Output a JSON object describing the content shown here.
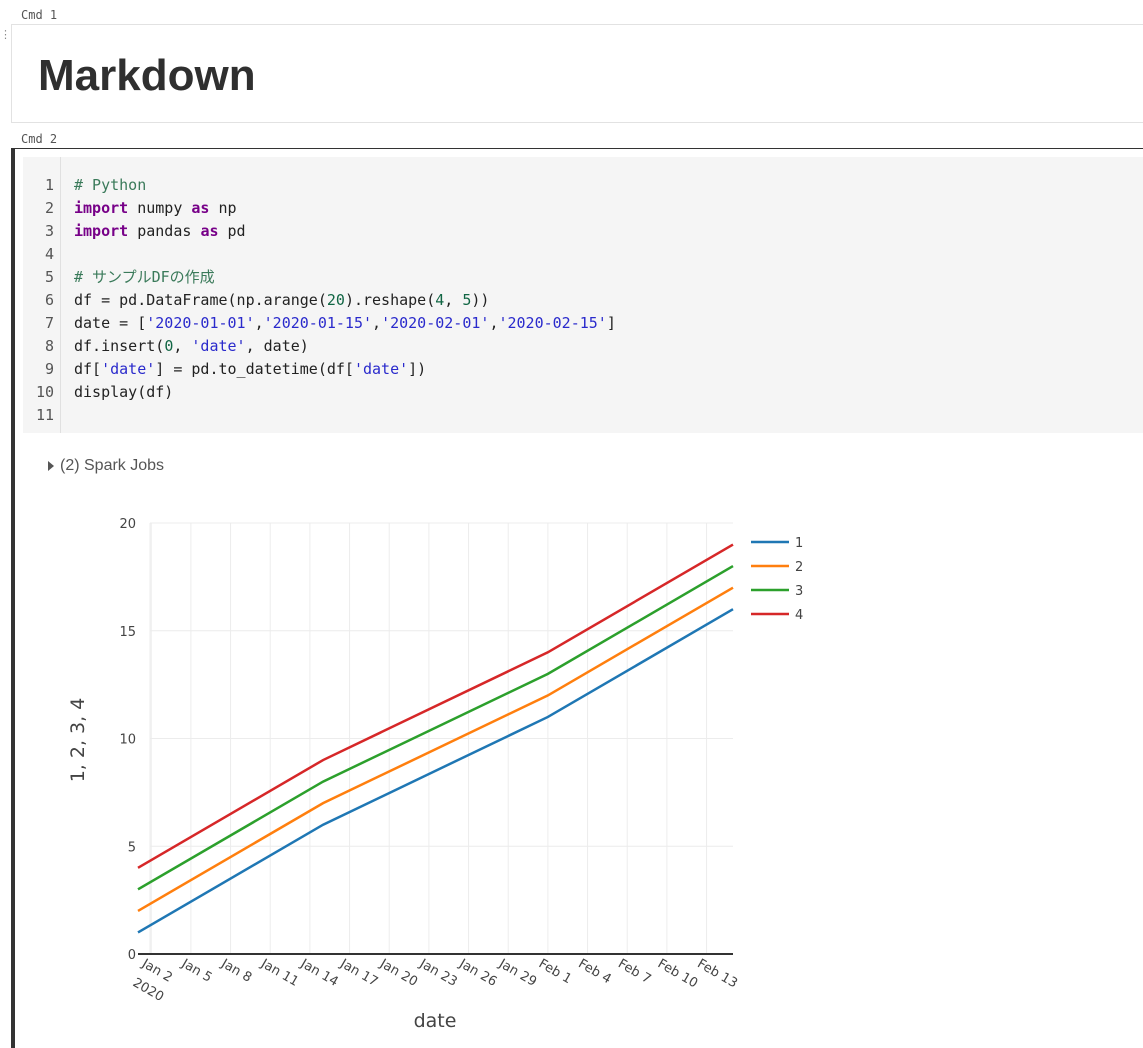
{
  "cells": [
    {
      "label": "Cmd 1",
      "heading": "Markdown"
    },
    {
      "label": "Cmd 2",
      "code": {
        "line_numbers": [
          "1",
          "2",
          "3",
          "4",
          "5",
          "6",
          "7",
          "8",
          "9",
          "10",
          "11"
        ],
        "lines": [
          "# Python",
          "import numpy as np",
          "import pandas as pd",
          "",
          "# サンプルDFの作成",
          "df = pd.DataFrame(np.arange(20).reshape(4, 5))",
          "date = ['2020-01-01','2020-01-15','2020-02-01','2020-02-15']",
          "df.insert(0, 'date', date)",
          "df['date'] = pd.to_datetime(df['date'])",
          "display(df)",
          ""
        ]
      },
      "spark_jobs": {
        "label": "(2) Spark Jobs",
        "expanded": false
      }
    }
  ],
  "chart_data": {
    "type": "line",
    "x": [
      "2020-01-01",
      "2020-01-15",
      "2020-02-01",
      "2020-02-15"
    ],
    "series": [
      {
        "name": "1",
        "color": "#1f77b4",
        "values": [
          1,
          6,
          11,
          16
        ]
      },
      {
        "name": "2",
        "color": "#ff7f0e",
        "values": [
          2,
          7,
          12,
          17
        ]
      },
      {
        "name": "3",
        "color": "#2ca02c",
        "values": [
          3,
          8,
          13,
          18
        ]
      },
      {
        "name": "4",
        "color": "#d62728",
        "values": [
          4,
          9,
          14,
          19
        ]
      }
    ],
    "xlabel": "date",
    "ylabel": "1, 2, 3, 4",
    "ylim": [
      0,
      20
    ],
    "y_ticks": [
      0,
      5,
      10,
      15,
      20
    ],
    "x_ticks": [
      "Jan 2",
      "Jan 5",
      "Jan 8",
      "Jan 11",
      "Jan 14",
      "Jan 17",
      "Jan 20",
      "Jan 23",
      "Jan 26",
      "Jan 29",
      "Feb 1",
      "Feb 4",
      "Feb 7",
      "Feb 10",
      "Feb 13"
    ],
    "x_tick_year": "2020",
    "grid": true,
    "legend_position": "top-right"
  }
}
